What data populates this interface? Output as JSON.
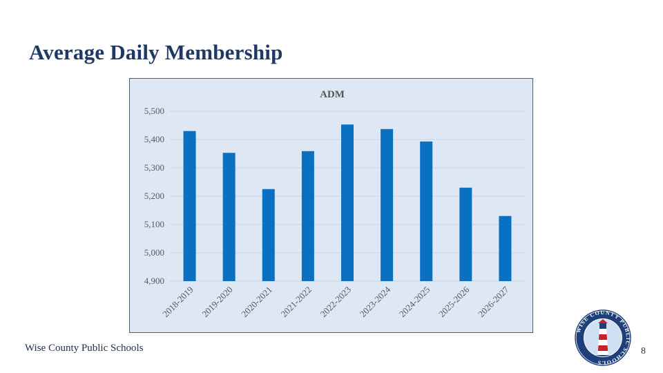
{
  "slide": {
    "title": "Average Daily Membership",
    "footer": "Wise County Public Schools",
    "page_number": "8"
  },
  "logo": {
    "text": "WISE COUNTY PUBLIC SCHOOLS",
    "colors": {
      "ring": "#1f3f7a",
      "stripe_red": "#c8202a",
      "sky": "#cfe0f2"
    }
  },
  "colors": {
    "bar": "#0a70c2",
    "chart_bg": "#dde8f4",
    "gridline": "#c8d3df",
    "title": "#1f3864"
  },
  "chart_data": {
    "type": "bar",
    "title": "ADM",
    "categories": [
      "2018-2019",
      "2019-2020",
      "2020-2021",
      "2021-2022",
      "2022-2023",
      "2023-2024",
      "2024-2025",
      "2025-2026",
      "2026-2027"
    ],
    "values": [
      5430,
      5353,
      5225,
      5359,
      5453,
      5437,
      5393,
      5230,
      5130
    ],
    "ylim": [
      4900,
      5500
    ],
    "yticks": [
      4900,
      5000,
      5100,
      5200,
      5300,
      5400,
      5500
    ],
    "ytick_labels": [
      "4,900",
      "5,000",
      "5,100",
      "5,200",
      "5,300",
      "5,400",
      "5,500"
    ],
    "xlabel": "",
    "ylabel": "",
    "grid": true,
    "legend": "none"
  }
}
